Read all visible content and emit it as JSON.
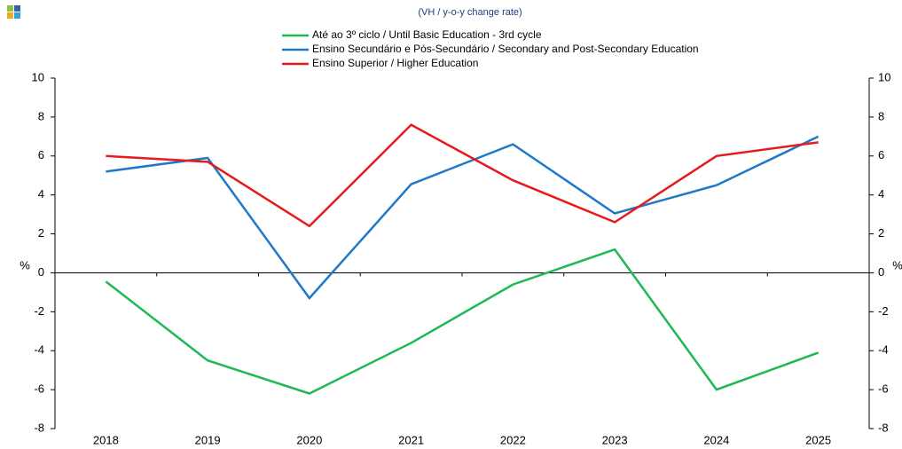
{
  "chart_data": {
    "type": "line",
    "subtitle": "(VH / y-o-y change rate)",
    "y_label": "%",
    "y2_label": "%",
    "categories": [
      "2018",
      "2019",
      "2020",
      "2021",
      "2022",
      "2023",
      "2024",
      "2025"
    ],
    "series": [
      {
        "name": "Até ao 3º ciclo / Until Basic Education - 3rd cycle",
        "color": "#1db954",
        "values": [
          -0.45,
          -4.5,
          -6.2,
          -3.6,
          -0.6,
          1.2,
          -6.0,
          -4.1
        ]
      },
      {
        "name": "Ensino Secundário e Pós-Secundário / Secondary and Post-Secondary Education",
        "color": "#1f78c8",
        "values": [
          5.2,
          5.9,
          -1.3,
          4.55,
          6.6,
          3.05,
          4.5,
          7.0
        ]
      },
      {
        "name": "Ensino Superior / Higher Education",
        "color": "#e8191c",
        "values": [
          6.0,
          5.7,
          2.4,
          7.6,
          4.75,
          2.6,
          6.0,
          6.7
        ]
      }
    ],
    "ylim": [
      -8,
      10
    ],
    "yticks": [
      -8,
      -6,
      -4,
      -2,
      0,
      2,
      4,
      6,
      8,
      10
    ],
    "y2lim": [
      -8,
      10
    ],
    "y2ticks": [
      -8,
      -6,
      -4,
      -2,
      0,
      2,
      4,
      6,
      8,
      10
    ],
    "grid": false,
    "legend": "top"
  }
}
